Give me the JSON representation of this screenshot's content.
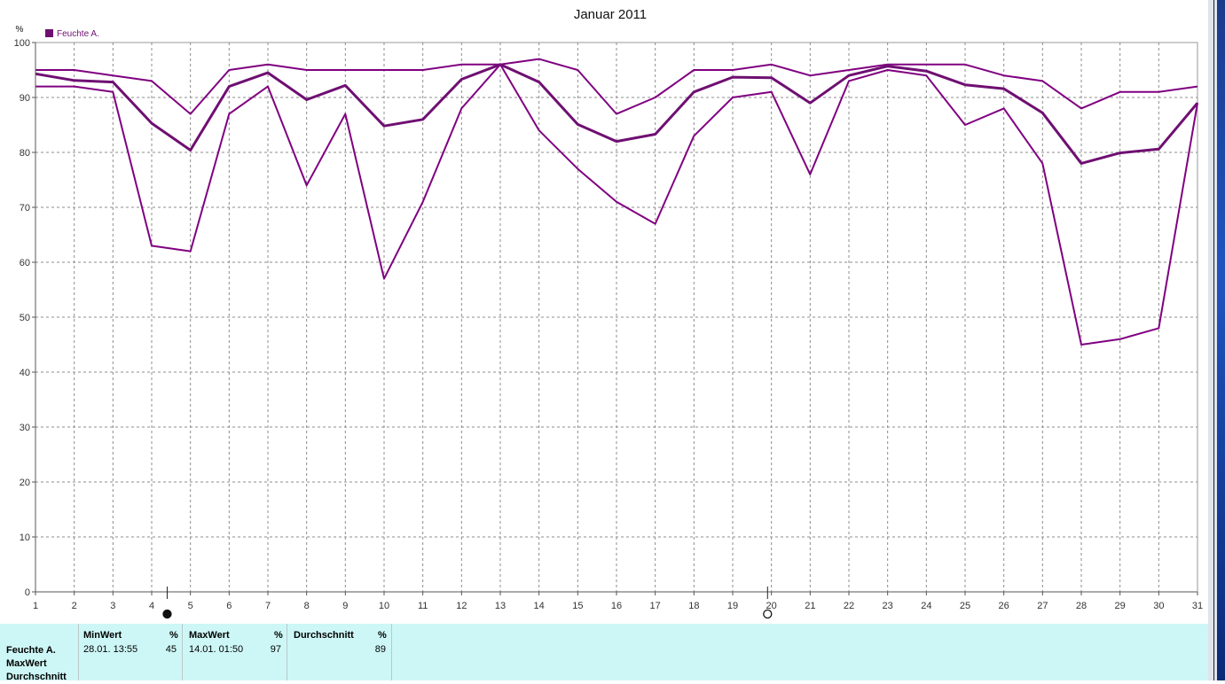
{
  "chart_data": {
    "type": "line",
    "title": "Januar 2011",
    "ylabel": "%",
    "xlabel": "",
    "ylim": [
      0,
      100
    ],
    "yticks": [
      0,
      10,
      20,
      30,
      40,
      50,
      60,
      70,
      80,
      90,
      100
    ],
    "x": [
      1,
      2,
      3,
      4,
      5,
      6,
      7,
      8,
      9,
      10,
      11,
      12,
      13,
      14,
      15,
      16,
      17,
      18,
      19,
      20,
      21,
      22,
      23,
      24,
      25,
      26,
      27,
      28,
      29,
      30,
      31
    ],
    "legend": {
      "name": "Feuchte A.",
      "color": "#6f0f72",
      "placement": "top-left"
    },
    "grid": true,
    "series": [
      {
        "values": [
          95,
          95,
          94,
          93,
          87,
          95,
          96,
          95,
          95,
          95,
          95,
          96,
          96,
          97,
          95,
          87,
          90,
          95,
          95,
          96,
          94,
          95,
          96,
          96,
          96,
          94,
          93,
          88,
          91,
          91,
          92
        ],
        "color": "#800080",
        "width": 2
      },
      {
        "values": [
          94.3,
          93.1,
          92.8,
          85.3,
          80.4,
          92.0,
          94.5,
          89.6,
          92.2,
          84.8,
          86.0,
          93.3,
          96.0,
          92.8,
          85.1,
          82.0,
          83.3,
          91.0,
          93.7,
          93.6,
          89.0,
          94.0,
          95.7,
          94.8,
          92.3,
          91.6,
          87.2,
          78.0,
          79.9,
          80.6,
          89.0
        ],
        "color": "#6f0f72",
        "width": 3
      },
      {
        "values": [
          92,
          92,
          91,
          63,
          62,
          87,
          92,
          74,
          87,
          57,
          71,
          88,
          96,
          84,
          77,
          71,
          67,
          83,
          90,
          91,
          76,
          93,
          95,
          94,
          85,
          88,
          78,
          45,
          46,
          48,
          89
        ],
        "color": "#800080",
        "width": 2
      }
    ],
    "markers": [
      {
        "symbol": "filled-circle",
        "x": 4.4
      },
      {
        "symbol": "open-circle",
        "x": 19.9
      }
    ]
  },
  "stats": {
    "row_labels": [
      "Feuchte A.",
      "MaxWert",
      "Durchschnitt"
    ],
    "columns": [
      {
        "header": "MinWert",
        "unit": "%",
        "time": "28.01.  13:55",
        "value": "45"
      },
      {
        "header": "MaxWert",
        "unit": "%",
        "time": "14.01.  01:50",
        "value": "97"
      },
      {
        "header": "Durchschnitt",
        "unit": "%",
        "time": "",
        "value": "89"
      }
    ]
  }
}
